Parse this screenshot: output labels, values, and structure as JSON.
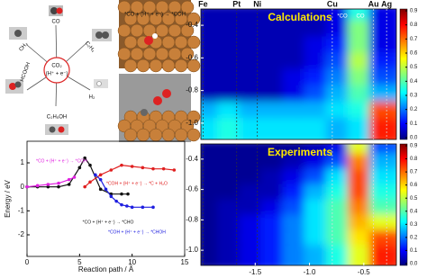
{
  "diagram": {
    "center": [
      "CO₂",
      "(H⁺ + e⁻)"
    ],
    "products": [
      "CO",
      "CH₄",
      "C₂H₄",
      "HCOOH",
      "H₂",
      "C₂H₅OH"
    ]
  },
  "image_caption": "*CO + (H⁺ + e⁻) → *COH",
  "chart_data": [
    {
      "type": "line",
      "xlabel": "Reaction path / Å",
      "ylabel": "Energy / eV",
      "xlim": [
        0,
        15
      ],
      "ylim": [
        -2.9,
        1.9
      ],
      "xticks": [
        0,
        5,
        10,
        15
      ],
      "yticks": [
        -2,
        -1,
        0,
        1
      ],
      "series": [
        {
          "name": "*CO + (H⁺ + e⁻) → *CHO",
          "color": "#111111",
          "x": [
            0,
            1,
            2,
            3,
            4,
            5,
            5.5,
            6,
            7,
            8,
            9,
            9.6
          ],
          "values": [
            0,
            0,
            0,
            0,
            0.1,
            0.8,
            1.2,
            0.9,
            -0.1,
            -0.3,
            -0.3,
            -0.3
          ]
        },
        {
          "name": "*CO + (H⁺ + e⁻) → *COH",
          "color": "#e020e0",
          "x": [
            0,
            1,
            2,
            3,
            4,
            4.5
          ],
          "values": [
            0,
            0.05,
            0.1,
            0.15,
            0.3,
            0.4
          ]
        },
        {
          "name": "*COH + (H⁺ + e⁻) → *C + H₂O",
          "color": "#e02020",
          "x": [
            5.5,
            6,
            7,
            8,
            9,
            10,
            11,
            12,
            13,
            14
          ],
          "values": [
            0,
            0.2,
            0.5,
            0.7,
            0.9,
            0.85,
            0.8,
            0.75,
            0.75,
            0.7
          ]
        },
        {
          "name": "*COH + (H⁺ + e⁻) → *CHOH",
          "color": "#2020e0",
          "x": [
            6.5,
            7,
            7.5,
            8,
            8.5,
            9,
            9.5,
            10,
            11,
            12
          ],
          "values": [
            0.5,
            0.3,
            -0.1,
            -0.4,
            -0.6,
            -0.75,
            -0.8,
            -0.85,
            -0.85,
            -0.85
          ]
        }
      ]
    },
    {
      "type": "heatmap",
      "title": "Calculations",
      "xlim": [
        -2.0,
        -0.2
      ],
      "ylim": [
        -1.1,
        -0.3
      ],
      "yticks": [
        -0.4,
        -0.6,
        -0.8,
        {
          "value": -1,
          "label": "-1.0"
        }
      ],
      "colorbar_ticks": [
        {
          "value": 0,
          "label": "0.0"
        },
        0.1,
        0.2,
        0.3,
        0.4,
        0.5,
        0.6,
        0.7,
        0.8,
        0.9
      ],
      "markers": [
        {
          "label": "Fe",
          "x": -1.98
        },
        {
          "label": "Pt",
          "x": -1.67
        },
        {
          "label": "Ni",
          "x": -1.48
        },
        {
          "label": "Cu",
          "x": -0.79
        },
        {
          "label": "Au",
          "x": -0.41
        },
        {
          "label": "Ag",
          "x": -0.29
        }
      ],
      "annotations": [
        "*CO",
        "CO"
      ],
      "x": [
        -1.9,
        -1.7,
        -1.5,
        -1.3,
        -1.1,
        -0.9,
        -0.7,
        -0.5,
        -0.3
      ],
      "y": [
        -0.35,
        -0.45,
        -0.55,
        -0.65,
        -0.75,
        -0.85,
        -0.95,
        -1.05
      ],
      "values": [
        [
          0.05,
          0.05,
          0.05,
          0.05,
          0.05,
          0.05,
          0.1,
          0.4,
          0.1
        ],
        [
          0.05,
          0.05,
          0.05,
          0.05,
          0.05,
          0.05,
          0.1,
          0.5,
          0.1
        ],
        [
          0.05,
          0.05,
          0.05,
          0.05,
          0.05,
          0.1,
          0.15,
          0.5,
          0.1
        ],
        [
          0.05,
          0.05,
          0.05,
          0.05,
          0.05,
          0.1,
          0.2,
          0.55,
          0.15
        ],
        [
          0.05,
          0.05,
          0.05,
          0.05,
          0.1,
          0.15,
          0.25,
          0.5,
          0.2
        ],
        [
          0.05,
          0.05,
          0.05,
          0.05,
          0.1,
          0.2,
          0.3,
          0.45,
          0.3
        ],
        [
          0.3,
          0.35,
          0.3,
          0.3,
          0.3,
          0.3,
          0.35,
          0.4,
          0.8
        ],
        [
          0.35,
          0.4,
          0.35,
          0.35,
          0.35,
          0.35,
          0.3,
          0.35,
          0.85
        ]
      ]
    },
    {
      "type": "heatmap",
      "title": "Experiments",
      "xlim": [
        -2.0,
        -0.2
      ],
      "ylim": [
        -1.1,
        -0.3
      ],
      "xticks": [
        -1.5,
        {
          "value": -1,
          "label": "-1.0"
        },
        -0.5
      ],
      "yticks": [
        -0.4,
        -0.6,
        -0.8,
        {
          "value": -1,
          "label": "-1.0"
        }
      ],
      "colorbar_ticks": [
        {
          "value": 0,
          "label": "0.0"
        },
        0.1,
        0.2,
        0.3,
        0.4,
        0.5,
        0.6,
        0.7,
        0.8,
        0.9
      ],
      "markers": [
        {
          "label": "Fe",
          "x": -1.98
        },
        {
          "label": "Pt",
          "x": -1.67
        },
        {
          "label": "Ni",
          "x": -1.48
        },
        {
          "label": "Cu",
          "x": -0.79
        },
        {
          "label": "Au",
          "x": -0.41
        },
        {
          "label": "Ag",
          "x": -0.29
        }
      ],
      "x": [
        -1.9,
        -1.7,
        -1.5,
        -1.3,
        -1.1,
        -0.9,
        -0.7,
        -0.5,
        -0.3
      ],
      "y": [
        -0.35,
        -0.45,
        -0.55,
        -0.65,
        -0.75,
        -0.85,
        -0.95,
        -1.05
      ],
      "values": [
        [
          0.02,
          0.02,
          0.02,
          0.02,
          0.02,
          0.05,
          0.1,
          0.6,
          0.2
        ],
        [
          0.02,
          0.02,
          0.02,
          0.02,
          0.05,
          0.1,
          0.2,
          0.75,
          0.3
        ],
        [
          0.02,
          0.02,
          0.02,
          0.05,
          0.1,
          0.2,
          0.35,
          0.8,
          0.35
        ],
        [
          0.02,
          0.02,
          0.05,
          0.05,
          0.15,
          0.3,
          0.4,
          0.8,
          0.4
        ],
        [
          0.02,
          0.05,
          0.05,
          0.1,
          0.2,
          0.35,
          0.45,
          0.75,
          0.45
        ],
        [
          0.02,
          0.05,
          0.1,
          0.15,
          0.25,
          0.35,
          0.45,
          0.7,
          0.6
        ],
        [
          0.02,
          0.05,
          0.1,
          0.15,
          0.25,
          0.35,
          0.45,
          0.65,
          0.8
        ],
        [
          0.02,
          0.05,
          0.1,
          0.15,
          0.25,
          0.3,
          0.4,
          0.6,
          0.85
        ]
      ]
    }
  ]
}
